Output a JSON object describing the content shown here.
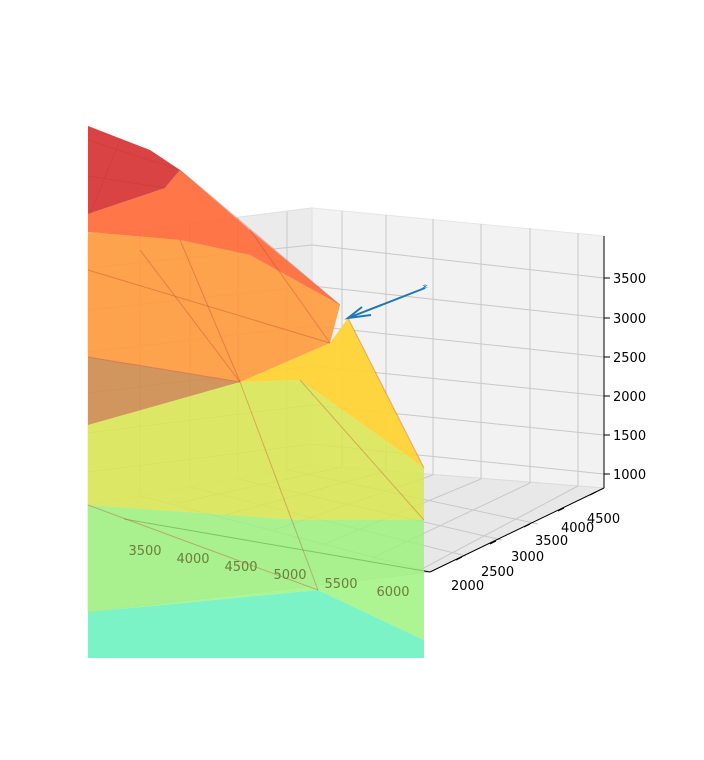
{
  "chart_data": {
    "type": "surface3d",
    "title": "",
    "xlabel": "",
    "ylabel": "",
    "zlabel": "",
    "grid": true,
    "colormap": "jet-like (cyan, green, yellow, orange, red)",
    "x_ticks": [
      "3500",
      "4000",
      "4500",
      "5000",
      "5500",
      "6000"
    ],
    "y_ticks": [
      "2000",
      "2500",
      "3000",
      "3500",
      "4000",
      "4500"
    ],
    "z_ticks": [
      "1000",
      "1500",
      "2000",
      "2500",
      "3000",
      "3500"
    ],
    "xlim": [
      3000,
      6250
    ],
    "ylim": [
      1800,
      4700
    ],
    "zlim": [
      850,
      3900
    ],
    "surface_bands": [
      {
        "color": "#d62f2f",
        "z_range": [
          3400,
          3900
        ]
      },
      {
        "color": "#ff6a3a",
        "z_range": [
          3000,
          3400
        ]
      },
      {
        "color": "#ff9a3c",
        "z_range": [
          2600,
          3000
        ]
      },
      {
        "color": "#ffd230",
        "z_range": [
          2100,
          2600
        ]
      },
      {
        "color": "#d9e84e",
        "z_range": [
          1600,
          2100
        ]
      },
      {
        "color": "#9bf17a",
        "z_range": [
          1100,
          1600
        ]
      },
      {
        "color": "#5ff0bb",
        "z_range": [
          850,
          1100
        ]
      }
    ],
    "arrow": {
      "color": "#1f77b4",
      "start_marker": "star",
      "description_visible": false
    }
  }
}
